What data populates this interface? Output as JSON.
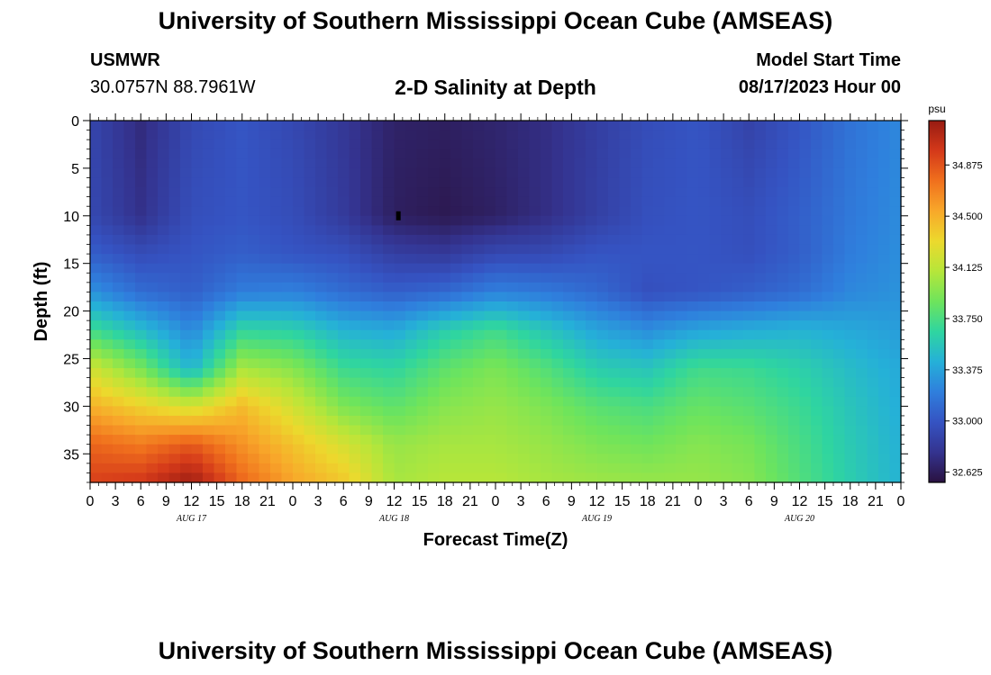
{
  "page": {
    "title_top": "University of Southern Mississippi Ocean Cube (AMSEAS)",
    "station": "USMWR",
    "coords": "30.0757N  88.7961W",
    "plot_title": "2-D Salinity at Depth",
    "model_label": "Model Start Time",
    "model_time": "08/17/2023 Hour 00",
    "title_bottom": "University of Southern Mississippi Ocean Cube (AMSEAS)"
  },
  "chart_data": {
    "type": "heatmap",
    "title": "2-D Salinity at Depth",
    "xlabel": "Forecast Time(Z)",
    "ylabel": "Depth (ft)",
    "x_ticks": [
      "0",
      "3",
      "6",
      "9",
      "12",
      "15",
      "18",
      "21",
      "0",
      "3",
      "6",
      "9",
      "12",
      "15",
      "18",
      "21",
      "0",
      "3",
      "6",
      "9",
      "12",
      "15",
      "18",
      "21",
      "0",
      "3",
      "6",
      "9",
      "12",
      "15",
      "18",
      "21",
      "0"
    ],
    "day_labels": [
      "AUG 17",
      "AUG 18",
      "AUG 19",
      "AUG 20"
    ],
    "y_ticks": [
      "0",
      "5",
      "10",
      "15",
      "20",
      "25",
      "30",
      "35"
    ],
    "y_range": [
      0,
      38
    ],
    "x_range_hours": [
      0,
      96
    ],
    "colorbar": {
      "unit": "psu",
      "ticks": [
        "34.875",
        "34.500",
        "34.125",
        "33.750",
        "33.375",
        "33.000",
        "32.625"
      ],
      "range": [
        32.55,
        35.2
      ],
      "colors": [
        "#2a1240",
        "#34338f",
        "#3553c2",
        "#2f7fdd",
        "#25b0d8",
        "#2fd5a0",
        "#6ee45c",
        "#b6e63a",
        "#ecd92d",
        "#f8a82a",
        "#f0701d",
        "#d4391a",
        "#981b12"
      ]
    },
    "depth_samples_ft": [
      0,
      10,
      14,
      18,
      22,
      26,
      30,
      34,
      38
    ],
    "hour_samples": [
      0,
      6,
      12,
      18,
      24,
      30,
      36,
      42,
      48,
      54,
      60,
      66,
      72,
      78,
      84,
      90,
      96
    ],
    "salinity_grid": [
      [
        32.9,
        32.72,
        32.92,
        33.0,
        32.92,
        32.8,
        32.66,
        32.64,
        32.68,
        32.74,
        32.85,
        32.95,
        33.0,
        32.88,
        33.0,
        33.15,
        33.25
      ],
      [
        32.92,
        32.76,
        32.96,
        33.0,
        32.95,
        32.82,
        32.64,
        32.6,
        32.65,
        32.74,
        32.86,
        32.97,
        33.0,
        32.96,
        33.05,
        33.18,
        33.27
      ],
      [
        33.05,
        32.95,
        33.0,
        33.05,
        33.0,
        32.97,
        32.85,
        32.82,
        32.92,
        32.93,
        33.0,
        33.0,
        33.0,
        32.97,
        33.05,
        33.2,
        33.28
      ],
      [
        33.3,
        33.12,
        33.05,
        33.2,
        33.22,
        33.12,
        33.05,
        33.1,
        33.22,
        33.18,
        33.1,
        32.97,
        33.0,
        33.05,
        33.12,
        33.25,
        33.3
      ],
      [
        33.72,
        33.5,
        33.25,
        33.65,
        33.62,
        33.45,
        33.4,
        33.6,
        33.72,
        33.55,
        33.38,
        33.28,
        33.38,
        33.42,
        33.45,
        33.4,
        33.35
      ],
      [
        34.2,
        33.9,
        33.45,
        34.05,
        33.95,
        33.7,
        33.65,
        33.82,
        33.92,
        33.78,
        33.6,
        33.55,
        33.72,
        33.7,
        33.62,
        33.5,
        33.4
      ],
      [
        34.5,
        34.35,
        34.2,
        34.45,
        34.2,
        33.92,
        33.82,
        33.95,
        34.0,
        33.92,
        33.8,
        33.75,
        33.85,
        33.8,
        33.7,
        33.55,
        33.42
      ],
      [
        34.8,
        34.72,
        34.85,
        34.62,
        34.42,
        34.22,
        34.0,
        34.05,
        34.05,
        34.0,
        33.92,
        33.88,
        33.95,
        33.9,
        33.75,
        33.58,
        33.44
      ],
      [
        34.95,
        35.0,
        35.18,
        34.8,
        34.55,
        34.4,
        34.05,
        34.1,
        34.1,
        34.05,
        34.02,
        34.0,
        34.0,
        33.95,
        33.78,
        33.6,
        33.45
      ]
    ],
    "marker": {
      "hour": 36.5,
      "depth_ft": 10
    }
  }
}
